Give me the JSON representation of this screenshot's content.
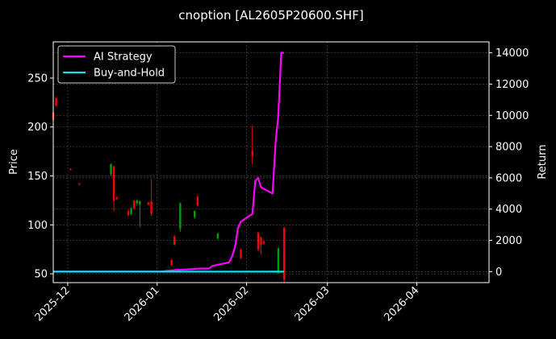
{
  "chart_data": {
    "type": "candlestick+line",
    "title": "cnoption [AL2605P20600.SHF]",
    "ylabel_left": "Price",
    "ylabel_right": "Return",
    "x_ticks": [
      "2025-12",
      "2026-01",
      "2026-02",
      "2026-03",
      "2026-04"
    ],
    "x_range": [
      "2025-11-26",
      "2026-04-26"
    ],
    "y_left_ticks": [
      50,
      100,
      150,
      200,
      250
    ],
    "y_left_range": [
      41,
      287
    ],
    "y_right_ticks": [
      0,
      2000,
      4000,
      6000,
      8000,
      10000,
      12000,
      14000
    ],
    "y_right_range": [
      -700,
      14700
    ],
    "grid": true,
    "legend_position": "top-left",
    "colors": {
      "background": "#000000",
      "up": "#00a000",
      "down": "#ff0000",
      "ai_strategy": "#ff00ff",
      "buy_and_hold": "#00e5ee",
      "grid": "#555555"
    },
    "series": [
      {
        "name": "AI Strategy",
        "color": "#ff00ff",
        "x": [
          "2025-11-26",
          "2026-01-02",
          "2026-01-07",
          "2026-01-12",
          "2026-01-16",
          "2026-01-19",
          "2026-01-20",
          "2026-01-21",
          "2026-01-26",
          "2026-01-27",
          "2026-01-28",
          "2026-01-29",
          "2026-01-30",
          "2026-02-03",
          "2026-02-04",
          "2026-02-05",
          "2026-02-06",
          "2026-02-10",
          "2026-02-11",
          "2026-02-12",
          "2026-02-13",
          "2026-02-14"
        ],
        "values": [
          0,
          0,
          100,
          150,
          200,
          200,
          350,
          400,
          600,
          1000,
          1600,
          2800,
          3200,
          3700,
          5800,
          6000,
          5400,
          5000,
          8200,
          10000,
          14000,
          14000
        ]
      },
      {
        "name": "Buy-and-Hold",
        "color": "#00e5ee",
        "x": [
          "2025-11-26",
          "2026-02-14"
        ],
        "values": [
          0,
          0
        ]
      }
    ],
    "candles": [
      {
        "date": "2025-11-26",
        "open": 215,
        "high": 218,
        "low": 205,
        "close": 207
      },
      {
        "date": "2025-11-27",
        "open": 230,
        "high": 230,
        "low": 221,
        "close": 222
      },
      {
        "date": "2025-12-02",
        "open": 157,
        "high": 158,
        "low": 156,
        "close": 156
      },
      {
        "date": "2025-12-05",
        "open": 142,
        "high": 143,
        "low": 141,
        "close": 141
      },
      {
        "date": "2025-12-16",
        "open": 152,
        "high": 163,
        "low": 150,
        "close": 162
      },
      {
        "date": "2025-12-17",
        "open": 160,
        "high": 160,
        "low": 114,
        "close": 125
      },
      {
        "date": "2025-12-18",
        "open": 128,
        "high": 129,
        "low": 126,
        "close": 126
      },
      {
        "date": "2025-12-22",
        "open": 114,
        "high": 116,
        "low": 109,
        "close": 110
      },
      {
        "date": "2025-12-23",
        "open": 111,
        "high": 118,
        "low": 110,
        "close": 117
      },
      {
        "date": "2025-12-24",
        "open": 125,
        "high": 125,
        "low": 116,
        "close": 117
      },
      {
        "date": "2025-12-25",
        "open": 122,
        "high": 126,
        "low": 120,
        "close": 125
      },
      {
        "date": "2025-12-26",
        "open": 121,
        "high": 125,
        "low": 98,
        "close": 124
      },
      {
        "date": "2025-12-29",
        "open": 123,
        "high": 123,
        "low": 120,
        "close": 121
      },
      {
        "date": "2025-12-30",
        "open": 124,
        "high": 147,
        "low": 109,
        "close": 112
      },
      {
        "date": "2026-01-06",
        "open": 64,
        "high": 65,
        "low": 58,
        "close": 59
      },
      {
        "date": "2026-01-07",
        "open": 88,
        "high": 90,
        "low": 79,
        "close": 80
      },
      {
        "date": "2026-01-09",
        "open": 96,
        "high": 123,
        "low": 93,
        "close": 122
      },
      {
        "date": "2026-01-14",
        "open": 108,
        "high": 115,
        "low": 106,
        "close": 114
      },
      {
        "date": "2026-01-15",
        "open": 129,
        "high": 130,
        "low": 119,
        "close": 120
      },
      {
        "date": "2026-01-22",
        "open": 86,
        "high": 92,
        "low": 85,
        "close": 91
      },
      {
        "date": "2026-01-30",
        "open": 75,
        "high": 76,
        "low": 65,
        "close": 66
      },
      {
        "date": "2026-02-03",
        "open": 176,
        "high": 202,
        "low": 162,
        "close": 170
      },
      {
        "date": "2026-02-05",
        "open": 92,
        "high": 93,
        "low": 73,
        "close": 75
      },
      {
        "date": "2026-02-06",
        "open": 87,
        "high": 88,
        "low": 70,
        "close": 80
      },
      {
        "date": "2026-02-07",
        "open": 83,
        "high": 84,
        "low": 80,
        "close": 81
      },
      {
        "date": "2026-02-12",
        "open": 52,
        "high": 77,
        "low": 50,
        "close": 76
      },
      {
        "date": "2026-02-14",
        "open": 97,
        "high": 98,
        "low": 41,
        "close": 44
      }
    ]
  }
}
